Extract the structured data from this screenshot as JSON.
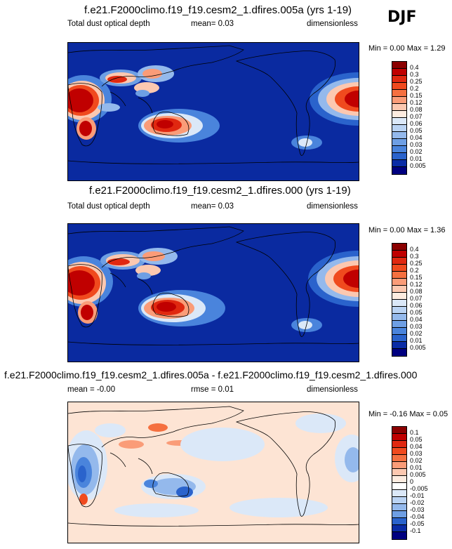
{
  "season": "DJF",
  "panels": [
    {
      "title": "f.e21.F2000climo.f19_f19.cesm2_1.dfires.005a (yrs 1-19)",
      "variable": "Total dust optical depth",
      "stat1": "mean=   0.03",
      "stat2": "",
      "units": "dimensionless",
      "minmax": "Min =  0.00 Max =  1.29",
      "levels": [
        "0.4",
        "0.3",
        "0.25",
        "0.2",
        "0.15",
        "0.12",
        "0.08",
        "0.07",
        "0.06",
        "0.05",
        "0.04",
        "0.03",
        "0.02",
        "0.01",
        "0.005"
      ],
      "colors": [
        "#8b0000",
        "#c00000",
        "#e02810",
        "#f04a1e",
        "#f57040",
        "#fa9c78",
        "#fcc8b0",
        "#fdece0",
        "#dbe8f8",
        "#bad3f3",
        "#94b9ec",
        "#6e9fe4",
        "#4a84dc",
        "#2a63cc",
        "#0a2ca6",
        "#000080"
      ],
      "background": "#0a2aa0"
    },
    {
      "title": "f.e21.F2000climo.f19_f19.cesm2_1.dfires.000 (yrs 1-19)",
      "variable": "Total dust optical depth",
      "stat1": "mean=   0.03",
      "stat2": "",
      "units": "dimensionless",
      "minmax": "Min =  0.00 Max =  1.36",
      "levels": [
        "0.4",
        "0.3",
        "0.25",
        "0.2",
        "0.15",
        "0.12",
        "0.08",
        "0.07",
        "0.06",
        "0.05",
        "0.04",
        "0.03",
        "0.02",
        "0.01",
        "0.005"
      ],
      "colors": [
        "#8b0000",
        "#c00000",
        "#e02810",
        "#f04a1e",
        "#f57040",
        "#fa9c78",
        "#fcc8b0",
        "#fdece0",
        "#dbe8f8",
        "#bad3f3",
        "#94b9ec",
        "#6e9fe4",
        "#4a84dc",
        "#2a63cc",
        "#0a2ca6",
        "#000080"
      ],
      "background": "#0a2aa0"
    },
    {
      "title": "f.e21.F2000climo.f19_f19.cesm2_1.dfires.005a - f.e21.F2000climo.f19_f19.cesm2_1.dfires.000",
      "variable": "",
      "stat1": "mean =  -0.00",
      "stat2": "rmse =   0.01",
      "units": "dimensionless",
      "minmax": "Min = -0.16 Max =  0.05",
      "levels": [
        "0.1",
        "0.05",
        "0.04",
        "0.03",
        "0.02",
        "0.01",
        "0.005",
        "0",
        "-0.005",
        "-0.01",
        "-0.02",
        "-0.03",
        "-0.04",
        "-0.05",
        "-0.1"
      ],
      "colors": [
        "#8b0000",
        "#c00000",
        "#e02810",
        "#f04a1e",
        "#f57040",
        "#fa9c78",
        "#fcc8b0",
        "#fdece0",
        "#ffffff",
        "#dbe8f8",
        "#bad3f3",
        "#94b9ec",
        "#6e9fe4",
        "#2a63cc",
        "#0a2ca6",
        "#000080"
      ],
      "background": "#fde4d4"
    }
  ]
}
